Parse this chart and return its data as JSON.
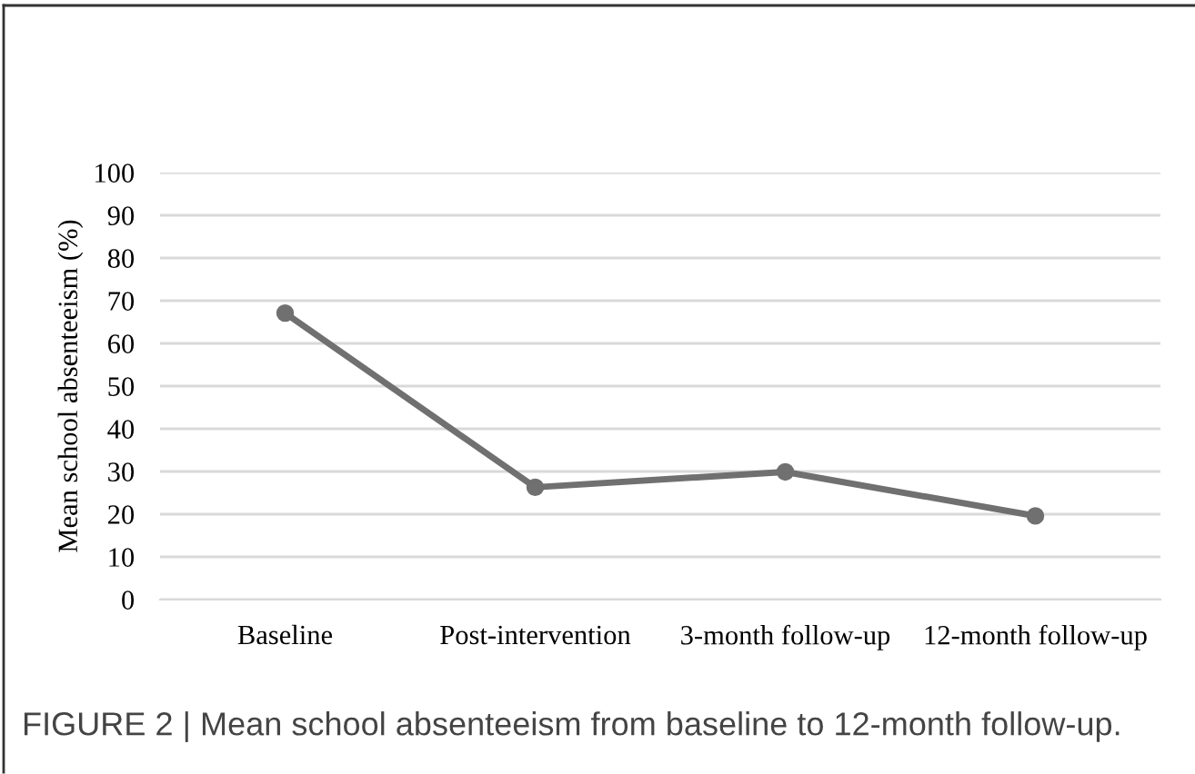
{
  "chart_data": {
    "type": "line",
    "ylabel": "Mean school absenteeism (%)",
    "categories": [
      "Baseline",
      "Post-intervention",
      "3-month follow-up",
      "12-month follow-up"
    ],
    "series": [
      {
        "color": "#707070",
        "values": [
          67.1,
          26.3,
          29.9,
          19.6
        ]
      }
    ],
    "ylim": [
      0,
      100
    ],
    "yticks": [
      0,
      10,
      20,
      30,
      40,
      50,
      60,
      70,
      80,
      90,
      100
    ],
    "grid": "y",
    "marker": "circle",
    "line_style": "solid",
    "annotations": [
      "FIGURE 2 | Mean school absenteeism from baseline to 12-month follow-up."
    ]
  }
}
